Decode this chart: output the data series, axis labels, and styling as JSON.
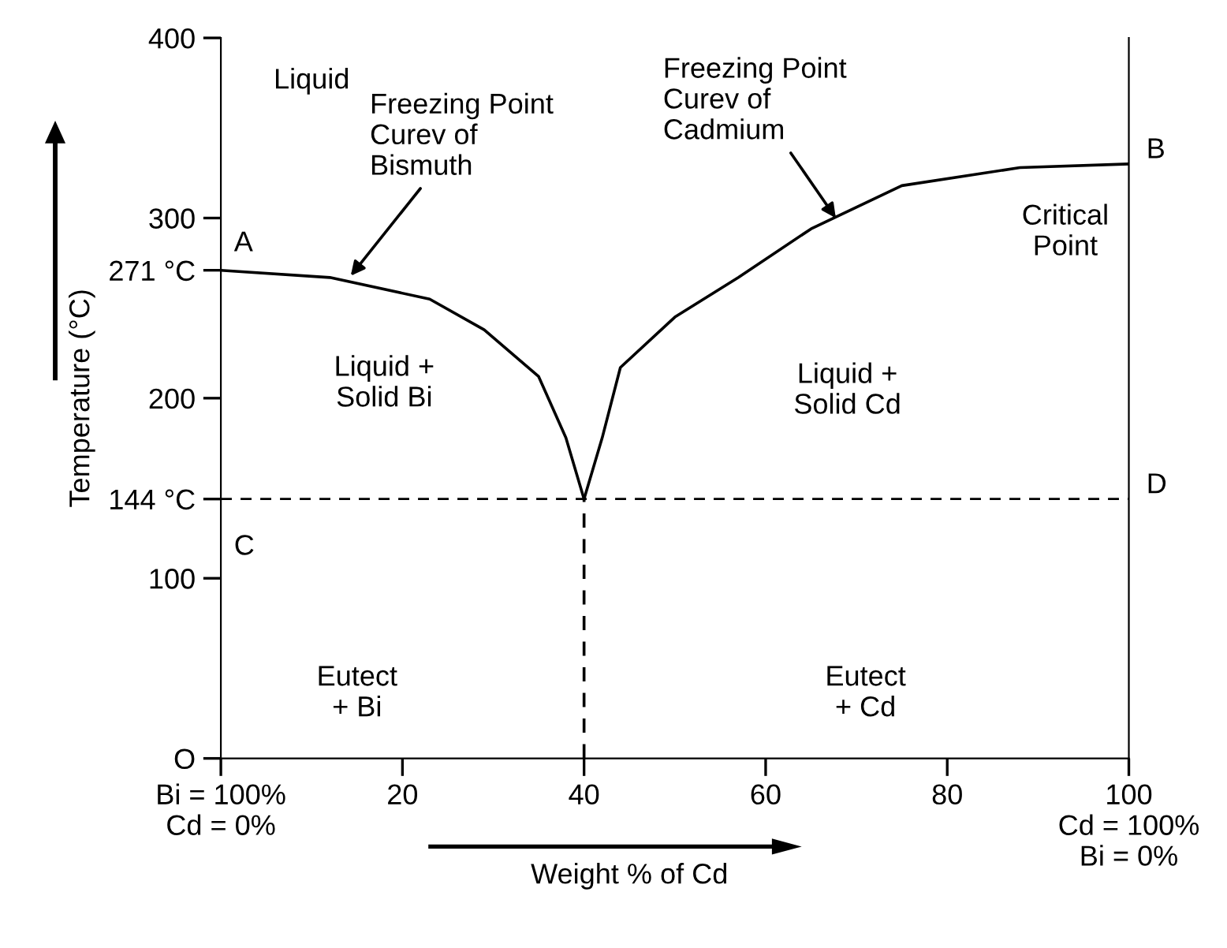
{
  "chart_data": {
    "type": "line",
    "xlabel": "Weight % of Cd",
    "ylabel": "Temperature (°C)",
    "xlim": [
      0,
      100
    ],
    "ylim": [
      0,
      400
    ],
    "xticks": [
      {
        "value": 0,
        "label": "Bi = 100%\nCd = 0%"
      },
      20,
      40,
      60,
      80,
      {
        "value": 100,
        "label": "100\nCd = 100%\nBi = 0%"
      }
    ],
    "yticks": [
      {
        "value": 0,
        "label": "O"
      },
      100,
      {
        "value": 144,
        "label": "144 °C"
      },
      200,
      {
        "value": 271,
        "label": "271 °C"
      },
      300,
      400
    ],
    "grid": false,
    "legend": false,
    "marker": "none",
    "series": [
      {
        "color": "#000000",
        "line_style": "solid",
        "x": [
          0,
          12,
          23,
          29,
          35,
          38,
          40
        ],
        "values": [
          271,
          267,
          255,
          238,
          212,
          178,
          144
        ]
      },
      {
        "color": "#000000",
        "line_style": "solid",
        "x": [
          40,
          42,
          44,
          50,
          57,
          65,
          75,
          88,
          100
        ],
        "values": [
          144,
          178,
          217,
          245,
          267,
          294,
          318,
          328,
          330
        ]
      },
      {
        "color": "#000000",
        "line_style": "dashed",
        "x": [
          40,
          40
        ],
        "values": [
          0,
          144
        ]
      }
    ],
    "ref_lines": [
      {
        "axis": "y",
        "value": 144,
        "color": "#000000",
        "line_style": "dashed"
      }
    ],
    "annotations": [
      {
        "text": "Freezing Point\nCurev of\nBismuth",
        "x": 14,
        "y": 266
      },
      {
        "text": "Freezing Point\nCurev of\nCadmium",
        "x": 68,
        "y": 298
      },
      "Liquid",
      "Liquid +\nSolid Bi",
      "Liquid +\nSolid Cd",
      "Eutect\n+ Bi",
      "Eutect\n+ Cd",
      "Critical\nPoint",
      {
        "text": "A",
        "x": 0,
        "y": 271
      },
      {
        "text": "B",
        "x": 100,
        "y": 330
      },
      {
        "text": "C",
        "x": 0,
        "y": 144
      },
      {
        "text": "D",
        "x": 100,
        "y": 144
      }
    ]
  }
}
